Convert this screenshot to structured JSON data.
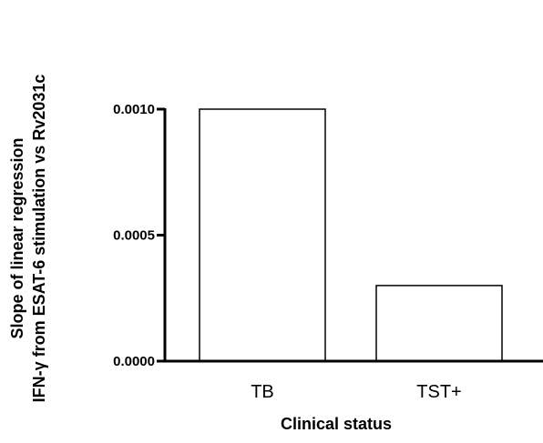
{
  "chart_data": {
    "type": "bar",
    "categories": [
      "TB",
      "TST+"
    ],
    "values": [
      0.001,
      0.0003
    ],
    "ylim": [
      0,
      0.001
    ],
    "yticks": [
      "0.0000",
      "0.0005",
      "0.0010"
    ],
    "ytick_values": [
      0,
      0.0005,
      0.001
    ],
    "xlabel": "Clinical status",
    "ylabel_line1": "Slope of linear regression",
    "ylabel_line2": "IFN-γ from ESAT-6 stimulation vs Rv2031c",
    "grid": false,
    "legend": "none",
    "colors": {
      "bar_fill": "#ffffff",
      "bar_stroke": "#000000",
      "axis": "#000000"
    }
  }
}
